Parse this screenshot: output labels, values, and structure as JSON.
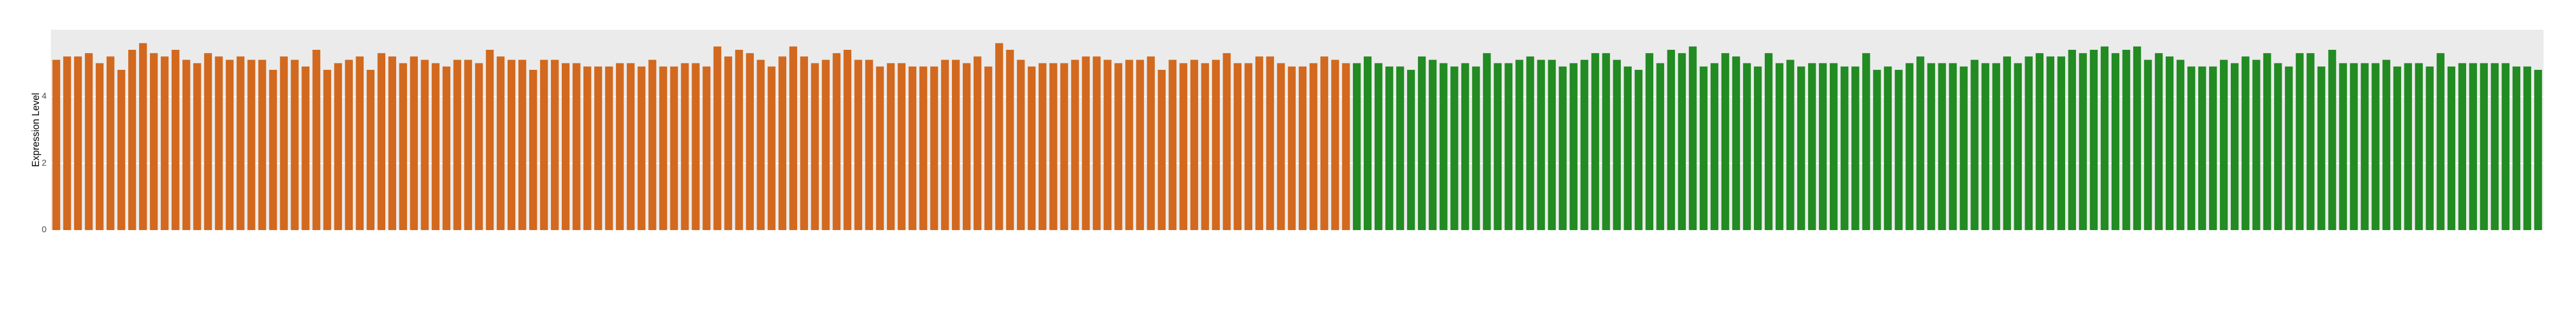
{
  "chart_data": {
    "type": "bar",
    "y_label": "Expression Level",
    "ylim": [
      0,
      6
    ],
    "yticks": [
      0,
      2,
      4
    ],
    "grid": true,
    "categories": [
      null,
      null,
      null,
      null,
      null,
      null,
      null,
      null,
      null,
      null,
      null,
      null,
      null,
      null,
      null,
      null,
      null,
      null,
      null,
      null,
      null,
      null,
      null,
      null,
      null,
      null,
      null,
      null,
      null,
      null,
      null,
      null,
      null,
      null,
      null,
      null,
      null,
      null,
      null,
      null,
      null,
      null,
      null,
      null,
      null,
      null,
      null,
      null,
      null,
      null,
      null,
      null,
      null,
      null,
      null,
      null,
      null,
      null,
      null,
      null,
      null,
      null,
      null,
      null,
      null,
      null,
      null,
      null,
      null,
      null,
      null,
      null,
      null,
      null,
      null,
      null,
      null,
      null,
      null,
      null,
      null,
      null,
      null,
      null,
      null,
      null,
      null,
      null,
      null,
      null,
      null,
      null,
      null,
      null,
      null,
      null,
      null,
      null,
      null,
      null,
      null,
      null,
      null,
      null,
      null,
      null,
      null,
      null,
      null,
      null,
      null,
      null,
      null,
      null,
      null,
      null,
      null,
      null,
      null,
      null,
      null,
      null,
      null,
      null,
      null,
      null,
      null,
      null,
      null,
      null,
      null,
      null,
      null,
      null,
      null,
      null,
      null,
      null,
      null,
      null,
      null,
      null,
      null,
      null,
      null,
      null,
      null,
      null,
      null,
      null,
      null,
      null,
      null,
      null,
      null,
      null,
      null,
      null,
      null,
      null,
      null,
      null,
      null,
      null,
      null,
      null,
      null,
      null,
      null,
      null,
      null,
      null,
      null,
      null,
      null,
      null,
      null,
      null,
      null,
      null,
      null,
      null,
      null,
      null,
      null,
      null,
      null,
      null,
      null,
      null,
      null,
      null,
      null,
      null,
      null,
      null,
      null,
      null,
      null,
      null,
      null,
      null,
      null,
      null,
      null,
      null,
      null,
      null,
      null,
      null,
      null,
      null,
      null,
      null,
      null,
      null,
      null,
      null,
      null,
      null,
      null,
      null,
      null,
      null,
      null,
      null,
      null,
      null,
      null,
      null
    ],
    "values": [
      5.1,
      5.2,
      5.2,
      5.3,
      5.0,
      5.2,
      4.8,
      5.4,
      5.6,
      5.3,
      5.2,
      5.4,
      5.1,
      5.0,
      5.3,
      5.2,
      5.1,
      5.2,
      5.1,
      5.1,
      4.8,
      5.2,
      5.1,
      4.9,
      5.4,
      4.8,
      5.0,
      5.1,
      5.2,
      4.8,
      5.3,
      5.2,
      5.0,
      5.2,
      5.1,
      5.0,
      4.9,
      5.1,
      5.1,
      5.0,
      5.4,
      5.2,
      5.1,
      5.1,
      4.8,
      5.1,
      5.1,
      5.0,
      5.0,
      4.9,
      4.9,
      4.9,
      5.0,
      5.0,
      4.9,
      5.1,
      4.9,
      4.9,
      5.0,
      5.0,
      4.9,
      5.5,
      5.2,
      5.4,
      5.3,
      5.1,
      4.9,
      5.2,
      5.5,
      5.2,
      5.0,
      5.1,
      5.3,
      5.4,
      5.1,
      5.1,
      4.9,
      5.0,
      5.0,
      4.9,
      4.9,
      4.9,
      5.1,
      5.1,
      5.0,
      5.2,
      4.9,
      5.6,
      5.4,
      5.1,
      4.9,
      5.0,
      5.0,
      5.0,
      5.1,
      5.2,
      5.2,
      5.1,
      5.0,
      5.1,
      5.1,
      5.2,
      4.8,
      5.1,
      5.0,
      5.1,
      5.0,
      5.1,
      5.3,
      5.0,
      5.0,
      5.2,
      5.2,
      5.0,
      4.9,
      4.9,
      5.0,
      5.2,
      5.1,
      5.0,
      5.0,
      5.2,
      5.0,
      4.9,
      4.9,
      4.8,
      5.2,
      5.1,
      5.0,
      4.9,
      5.0,
      4.9,
      5.3,
      5.0,
      5.0,
      5.1,
      5.2,
      5.1,
      5.1,
      4.9,
      5.0,
      5.1,
      5.3,
      5.3,
      5.1,
      4.9,
      4.8,
      5.3,
      5.0,
      5.4,
      5.3,
      5.5,
      4.9,
      5.0,
      5.3,
      5.2,
      5.0,
      4.9,
      5.3,
      5.0,
      5.1,
      4.9,
      5.0,
      5.0,
      5.0,
      4.9,
      4.9,
      5.3,
      4.8,
      4.9,
      4.8,
      5.0,
      5.2,
      5.0,
      5.0,
      5.0,
      4.9,
      5.1,
      5.0,
      5.0,
      5.2,
      5.0,
      5.2,
      5.3,
      5.2,
      5.2,
      5.4,
      5.3,
      5.4,
      5.5,
      5.3,
      5.4,
      5.5,
      5.1,
      5.3,
      5.2,
      5.1,
      4.9,
      4.9,
      4.9,
      5.1,
      5.0,
      5.2,
      5.1,
      5.3,
      5.0,
      4.9,
      5.3,
      5.3,
      4.9,
      5.4,
      5.0,
      5.0,
      5.0,
      5.0,
      5.1,
      4.9,
      5.0,
      5.0,
      4.9,
      5.3,
      4.9,
      5.0,
      5.0,
      5.0,
      5.0,
      5.0,
      4.9,
      4.9,
      4.8
    ],
    "colors": [
      "#d2691e",
      "#d2691e",
      "#d2691e",
      "#d2691e",
      "#d2691e",
      "#d2691e",
      "#d2691e",
      "#d2691e",
      "#d2691e",
      "#d2691e",
      "#d2691e",
      "#d2691e",
      "#d2691e",
      "#d2691e",
      "#d2691e",
      "#d2691e",
      "#d2691e",
      "#d2691e",
      "#d2691e",
      "#d2691e",
      "#d2691e",
      "#d2691e",
      "#d2691e",
      "#d2691e",
      "#d2691e",
      "#d2691e",
      "#d2691e",
      "#d2691e",
      "#d2691e",
      "#d2691e",
      "#d2691e",
      "#d2691e",
      "#d2691e",
      "#d2691e",
      "#d2691e",
      "#d2691e",
      "#d2691e",
      "#d2691e",
      "#d2691e",
      "#d2691e",
      "#d2691e",
      "#d2691e",
      "#d2691e",
      "#d2691e",
      "#d2691e",
      "#d2691e",
      "#d2691e",
      "#d2691e",
      "#d2691e",
      "#d2691e",
      "#d2691e",
      "#d2691e",
      "#d2691e",
      "#d2691e",
      "#d2691e",
      "#d2691e",
      "#d2691e",
      "#d2691e",
      "#d2691e",
      "#d2691e",
      "#d2691e",
      "#d2691e",
      "#d2691e",
      "#d2691e",
      "#d2691e",
      "#d2691e",
      "#d2691e",
      "#d2691e",
      "#d2691e",
      "#d2691e",
      "#d2691e",
      "#d2691e",
      "#d2691e",
      "#d2691e",
      "#d2691e",
      "#d2691e",
      "#d2691e",
      "#d2691e",
      "#d2691e",
      "#d2691e",
      "#d2691e",
      "#d2691e",
      "#d2691e",
      "#d2691e",
      "#d2691e",
      "#d2691e",
      "#d2691e",
      "#d2691e",
      "#d2691e",
      "#d2691e",
      "#d2691e",
      "#d2691e",
      "#d2691e",
      "#d2691e",
      "#d2691e",
      "#d2691e",
      "#d2691e",
      "#d2691e",
      "#d2691e",
      "#d2691e",
      "#d2691e",
      "#d2691e",
      "#d2691e",
      "#d2691e",
      "#d2691e",
      "#d2691e",
      "#d2691e",
      "#d2691e",
      "#d2691e",
      "#d2691e",
      "#d2691e",
      "#d2691e",
      "#d2691e",
      "#d2691e",
      "#d2691e",
      "#d2691e",
      "#d2691e",
      "#d2691e",
      "#d2691e",
      "#d2691e",
      "#228b22",
      "#228b22",
      "#228b22",
      "#228b22",
      "#228b22",
      "#228b22",
      "#228b22",
      "#228b22",
      "#228b22",
      "#228b22",
      "#228b22",
      "#228b22",
      "#228b22",
      "#228b22",
      "#228b22",
      "#228b22",
      "#228b22",
      "#228b22",
      "#228b22",
      "#228b22",
      "#228b22",
      "#228b22",
      "#228b22",
      "#228b22",
      "#228b22",
      "#228b22",
      "#228b22",
      "#228b22",
      "#228b22",
      "#228b22",
      "#228b22",
      "#228b22",
      "#228b22",
      "#228b22",
      "#228b22",
      "#228b22",
      "#228b22",
      "#228b22",
      "#228b22",
      "#228b22",
      "#228b22",
      "#228b22",
      "#228b22",
      "#228b22",
      "#228b22",
      "#228b22",
      "#228b22",
      "#228b22",
      "#228b22",
      "#228b22",
      "#228b22",
      "#228b22",
      "#228b22",
      "#228b22",
      "#228b22",
      "#228b22",
      "#228b22",
      "#228b22",
      "#228b22",
      "#228b22",
      "#228b22",
      "#228b22",
      "#228b22",
      "#228b22",
      "#228b22",
      "#228b22",
      "#228b22",
      "#228b22",
      "#228b22",
      "#228b22",
      "#228b22",
      "#228b22",
      "#228b22",
      "#228b22",
      "#228b22",
      "#228b22",
      "#228b22",
      "#228b22",
      "#228b22",
      "#228b22",
      "#228b22",
      "#228b22",
      "#228b22",
      "#228b22",
      "#228b22",
      "#228b22",
      "#228b22",
      "#228b22",
      "#228b22",
      "#228b22",
      "#228b22",
      "#228b22",
      "#228b22",
      "#228b22",
      "#228b22",
      "#228b22",
      "#228b22",
      "#228b22",
      "#228b22",
      "#228b22",
      "#228b22",
      "#228b22",
      "#228b22",
      "#228b22",
      "#228b22",
      "#228b22",
      "#228b22",
      "#228b22",
      "#228b22",
      "#228b22"
    ]
  }
}
